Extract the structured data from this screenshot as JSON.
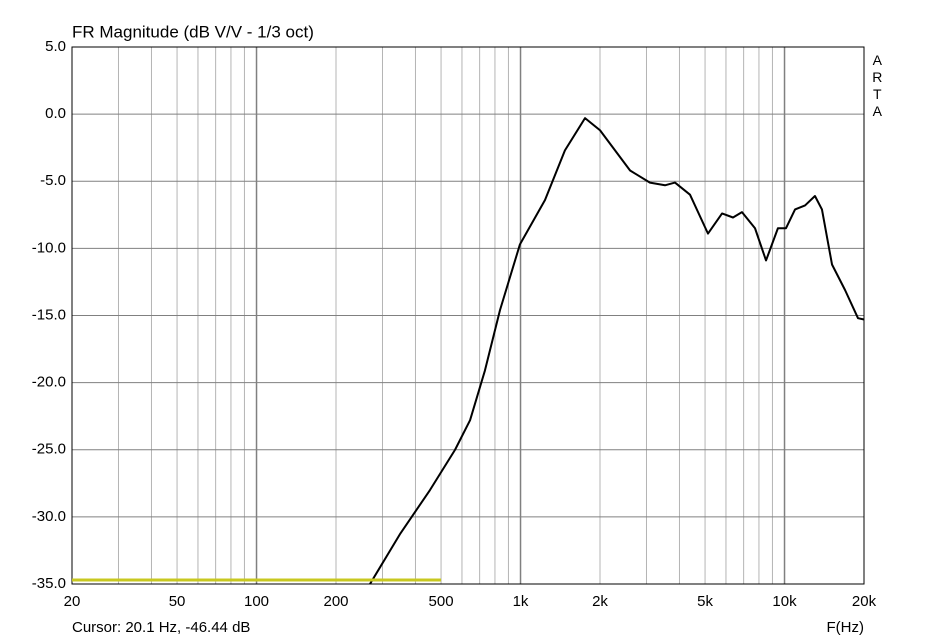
{
  "chart_data": {
    "type": "line",
    "title": "FR Magnitude (dB V/V - 1/3 oct)",
    "side_label": "ARTA",
    "x_label": "F(Hz)",
    "cursor_text": "Cursor: 20.1 Hz, -46.44 dB",
    "log_x": true,
    "grid": true,
    "xlim": [
      20,
      20000
    ],
    "ylim": [
      -35,
      5
    ],
    "xticks": [
      20,
      50,
      100,
      200,
      500,
      {
        "value": 1000,
        "label": "1k"
      },
      {
        "value": 2000,
        "label": "2k"
      },
      {
        "value": 5000,
        "label": "5k"
      },
      {
        "value": 10000,
        "label": "10k"
      },
      {
        "value": 20000,
        "label": "20k"
      }
    ],
    "x_minor_grid": [
      30,
      40,
      60,
      70,
      80,
      90,
      300,
      400,
      600,
      700,
      800,
      900,
      3000,
      4000,
      6000,
      7000,
      8000,
      9000
    ],
    "yticks": [
      {
        "value": 5,
        "label": "5.0"
      },
      {
        "value": 0,
        "label": "0.0"
      },
      {
        "value": -5,
        "label": "-5.0"
      },
      {
        "value": -10,
        "label": "-10.0"
      },
      {
        "value": -15,
        "label": "-15.0"
      },
      {
        "value": -20,
        "label": "-20.0"
      },
      {
        "value": -25,
        "label": "-25.0"
      },
      {
        "value": -30,
        "label": "-30.0"
      },
      {
        "value": -35,
        "label": "-35.0"
      }
    ],
    "series": [
      {
        "color": "#000000",
        "x": [
          269,
          349,
          454,
          565,
          644,
          733,
          836,
          995,
          1238,
          1473,
          1755,
          2000,
          2600,
          3091,
          3525,
          3846,
          4385,
          5130,
          5800,
          6380,
          6900,
          7730,
          8510,
          9440,
          10130,
          10960,
          11960,
          13040,
          13860,
          15130,
          16950,
          18980,
          20000
        ],
        "values": [
          -35,
          -31.3,
          -28.0,
          -25.0,
          -22.8,
          -19.1,
          -14.6,
          -9.7,
          -6.4,
          -2.7,
          -0.3,
          -1.2,
          -4.2,
          -5.1,
          -5.3,
          -5.1,
          -6.0,
          -8.9,
          -7.4,
          -7.7,
          -7.3,
          -8.5,
          -10.9,
          -8.5,
          -8.5,
          -7.1,
          -6.8,
          -6.1,
          -7.1,
          -11.2,
          -13.1,
          -15.2,
          -15.3
        ]
      },
      {
        "color": "#c8c820",
        "x": [
          20,
          500
        ],
        "values": [
          -34.7,
          -34.7
        ]
      }
    ]
  }
}
